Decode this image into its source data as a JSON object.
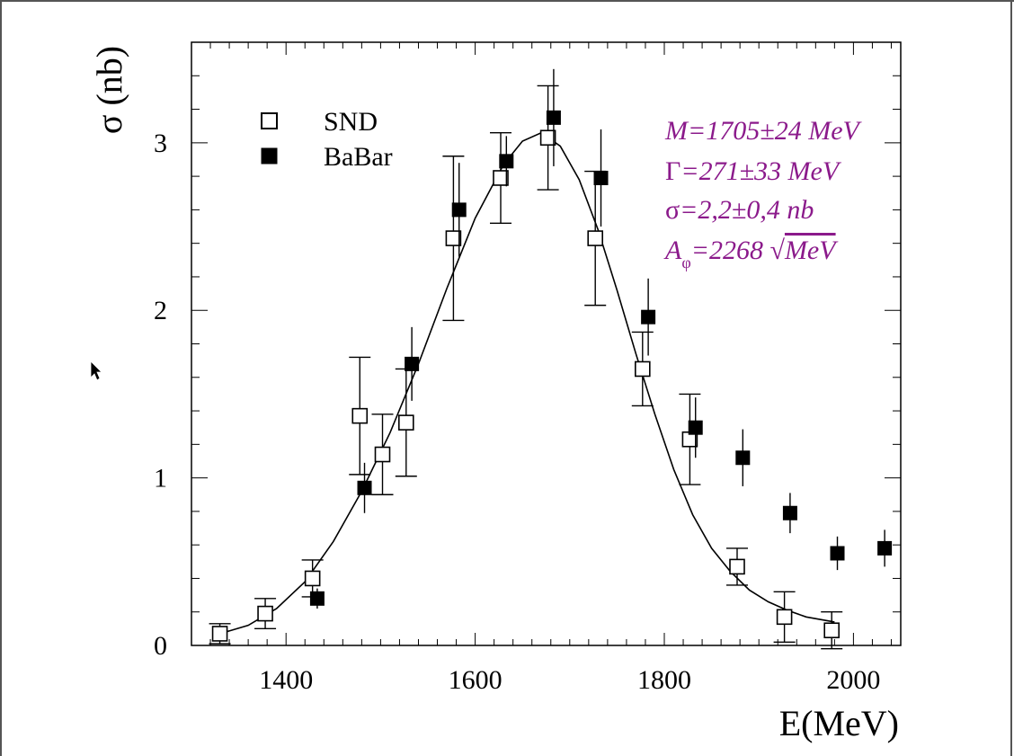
{
  "chart_data": {
    "type": "scatter",
    "xlabel": "E(MeV)",
    "ylabel": "σ (nb)",
    "xlim": [
      1300,
      2050
    ],
    "ylim": [
      0,
      3.6
    ],
    "x_ticks": [
      1400,
      1600,
      1800,
      2000
    ],
    "y_ticks": [
      0,
      1,
      2,
      3
    ],
    "grid": false,
    "legend_position": "top-left",
    "legend": [
      {
        "label": "SND",
        "marker": "open-square"
      },
      {
        "label": "BaBar",
        "marker": "filled-square"
      }
    ],
    "series": [
      {
        "name": "SND",
        "marker": "open-square",
        "points": [
          {
            "x": 1330,
            "y": 0.07,
            "err": 0.06
          },
          {
            "x": 1378,
            "y": 0.19,
            "err": 0.09
          },
          {
            "x": 1428,
            "y": 0.4,
            "err": 0.11
          },
          {
            "x": 1478,
            "y": 1.37,
            "err": 0.35
          },
          {
            "x": 1502,
            "y": 1.14,
            "err": 0.24
          },
          {
            "x": 1527,
            "y": 1.33,
            "err": 0.32
          },
          {
            "x": 1577,
            "y": 2.43,
            "err": 0.49
          },
          {
            "x": 1627,
            "y": 2.79,
            "err": 0.27
          },
          {
            "x": 1677,
            "y": 3.03,
            "err": 0.31
          },
          {
            "x": 1727,
            "y": 2.43,
            "err": 0.4
          },
          {
            "x": 1777,
            "y": 1.65,
            "err": 0.22
          },
          {
            "x": 1827,
            "y": 1.23,
            "err": 0.27
          },
          {
            "x": 1877,
            "y": 0.47,
            "err": 0.11
          },
          {
            "x": 1927,
            "y": 0.17,
            "err": 0.15
          },
          {
            "x": 1977,
            "y": 0.09,
            "err": 0.11
          }
        ]
      },
      {
        "name": "BaBar",
        "marker": "filled-square",
        "points": [
          {
            "x": 1433,
            "y": 0.28,
            "err": 0.06
          },
          {
            "x": 1483,
            "y": 0.94,
            "err": 0.15
          },
          {
            "x": 1533,
            "y": 1.68,
            "err": 0.22
          },
          {
            "x": 1583,
            "y": 2.6,
            "err": 0.28
          },
          {
            "x": 1633,
            "y": 2.89,
            "err": 0.15
          },
          {
            "x": 1683,
            "y": 3.15,
            "err": 0.29
          },
          {
            "x": 1733,
            "y": 2.79,
            "err": 0.29
          },
          {
            "x": 1783,
            "y": 1.96,
            "err": 0.23
          },
          {
            "x": 1833,
            "y": 1.3,
            "err": 0.18
          },
          {
            "x": 1883,
            "y": 1.12,
            "err": 0.17
          },
          {
            "x": 1933,
            "y": 0.79,
            "err": 0.12
          },
          {
            "x": 1983,
            "y": 0.55,
            "err": 0.1
          },
          {
            "x": 2033,
            "y": 0.58,
            "err": 0.11
          }
        ]
      }
    ],
    "fit_curve": {
      "points": [
        [
          1330,
          0.07
        ],
        [
          1360,
          0.12
        ],
        [
          1390,
          0.22
        ],
        [
          1420,
          0.38
        ],
        [
          1450,
          0.62
        ],
        [
          1480,
          0.92
        ],
        [
          1510,
          1.27
        ],
        [
          1540,
          1.68
        ],
        [
          1570,
          2.13
        ],
        [
          1600,
          2.55
        ],
        [
          1630,
          2.87
        ],
        [
          1650,
          3.01
        ],
        [
          1670,
          3.06
        ],
        [
          1690,
          2.98
        ],
        [
          1710,
          2.78
        ],
        [
          1730,
          2.48
        ],
        [
          1750,
          2.12
        ],
        [
          1770,
          1.74
        ],
        [
          1790,
          1.38
        ],
        [
          1810,
          1.05
        ],
        [
          1830,
          0.78
        ],
        [
          1850,
          0.58
        ],
        [
          1870,
          0.44
        ],
        [
          1890,
          0.33
        ],
        [
          1910,
          0.26
        ],
        [
          1930,
          0.21
        ],
        [
          1950,
          0.17
        ],
        [
          1980,
          0.14
        ]
      ]
    },
    "annotations": [
      {
        "prefix": "M",
        "text": "=1705±24 MeV"
      },
      {
        "prefix": "Γ",
        "text": "=271±33 MeV"
      },
      {
        "prefix": "σ",
        "text": "=2,2±0,4 nb"
      },
      {
        "prefix": "A",
        "subscript": "φ",
        "text": "=2268 ",
        "sqrt": "MeV"
      }
    ],
    "colors": {
      "axis": "#000000",
      "markers": "#000000",
      "annotation": "#8b1a8b"
    }
  }
}
